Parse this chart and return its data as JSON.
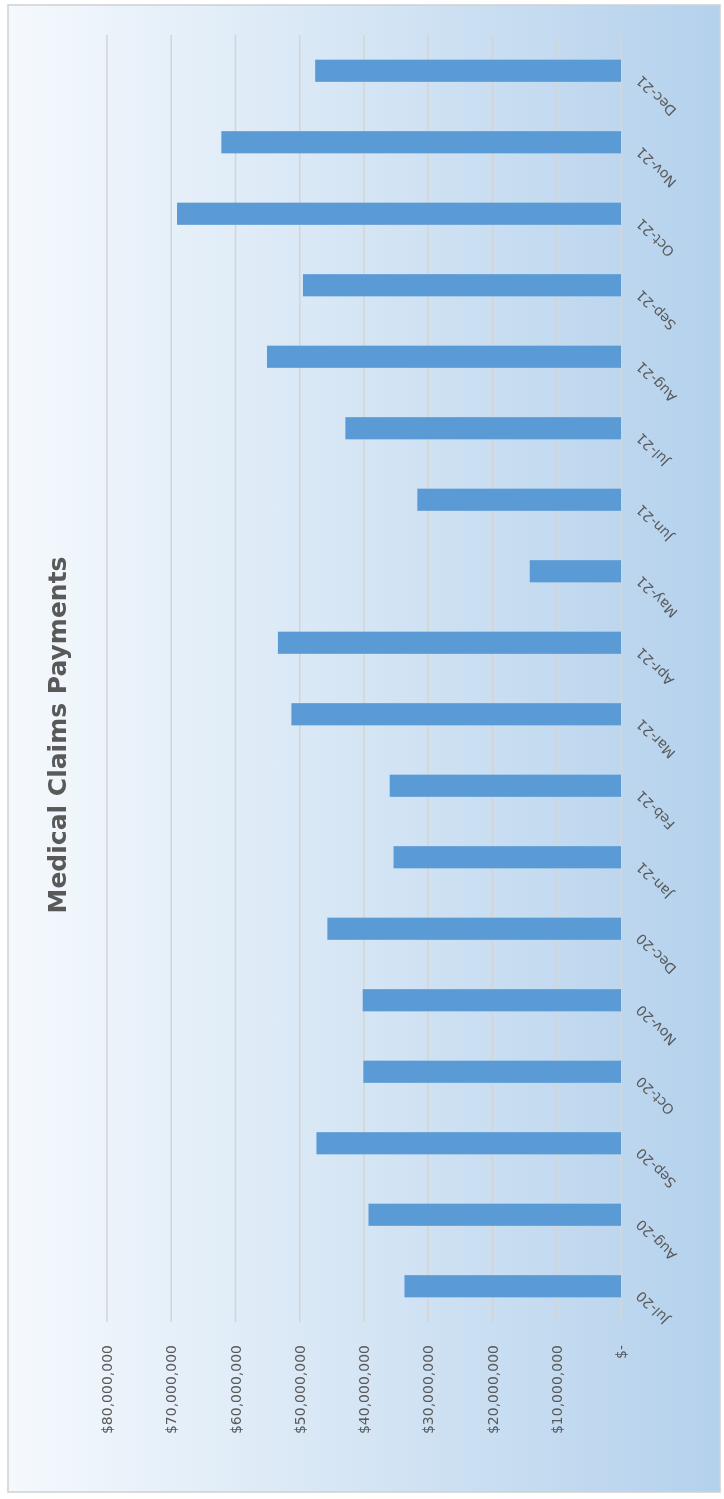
{
  "chart_data": {
    "type": "bar",
    "orientation": "horizontal",
    "title": "Medical Claims Payments",
    "categories": [
      "Dec-21",
      "Nov-21",
      "Oct-21",
      "Sep-21",
      "Aug-21",
      "Jul-21",
      "Jun-21",
      "May-21",
      "Apr-21",
      "Mar-21",
      "Feb-21",
      "Jan-21",
      "Dec-20",
      "Nov-20",
      "Oct-20",
      "Sep-20",
      "Aug-20",
      "Jul-20"
    ],
    "values": [
      47600000,
      62200000,
      69100000,
      49500000,
      55100000,
      42900000,
      31700000,
      14200000,
      53400000,
      51300000,
      36000000,
      35400000,
      45700000,
      40200000,
      40100000,
      47400000,
      39300000,
      33700000
    ],
    "color": "#5b9bd5",
    "xlim": [
      80000000,
      0
    ],
    "xticks": [
      {
        "value": 80000000,
        "label": "$80,000,000"
      },
      {
        "value": 70000000,
        "label": "$70,000,000"
      },
      {
        "value": 60000000,
        "label": "$60,000,000"
      },
      {
        "value": 50000000,
        "label": "$50,000,000"
      },
      {
        "value": 40000000,
        "label": "$40,000,000"
      },
      {
        "value": 30000000,
        "label": "$30,000,000"
      },
      {
        "value": 20000000,
        "label": "$20,000,000"
      },
      {
        "value": 10000000,
        "label": "$10,000,000"
      },
      {
        "value": 0,
        "label": "$-"
      }
    ],
    "grid": "x"
  }
}
